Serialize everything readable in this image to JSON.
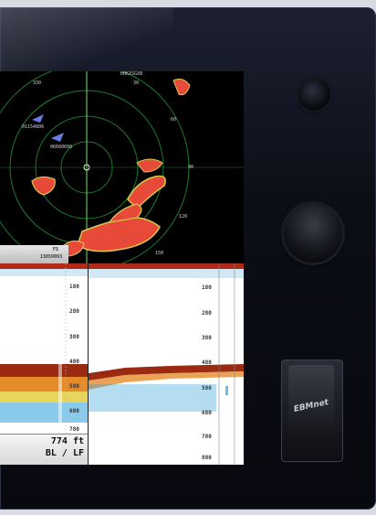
{
  "radar": {
    "heading_label": "HHKXSGXB",
    "range_labels": [
      "330",
      "30",
      "60",
      "90",
      "120",
      "150"
    ],
    "target_labels": [
      "01154806",
      "06660690"
    ],
    "info_label": "FS",
    "info_value": "13859093"
  },
  "sonar": {
    "depth_scale_left": [
      "180",
      "280",
      "380",
      "480",
      "580",
      "680",
      "780"
    ],
    "depth_scale_right": [
      "180",
      "280",
      "380",
      "480",
      "580",
      "680",
      "780",
      "880"
    ],
    "depth_readout": "774 ft",
    "mode_readout": "BL / LF"
  },
  "device": {
    "card_brand": "EBMnet"
  },
  "colors": {
    "radar_echo": "#e84a3a",
    "radar_echo_edge": "#d6c94a",
    "sonar_bottom": "#9a2b12",
    "sonar_scatter": "#2a9fd8",
    "range_ring": "#1b7a2a"
  }
}
